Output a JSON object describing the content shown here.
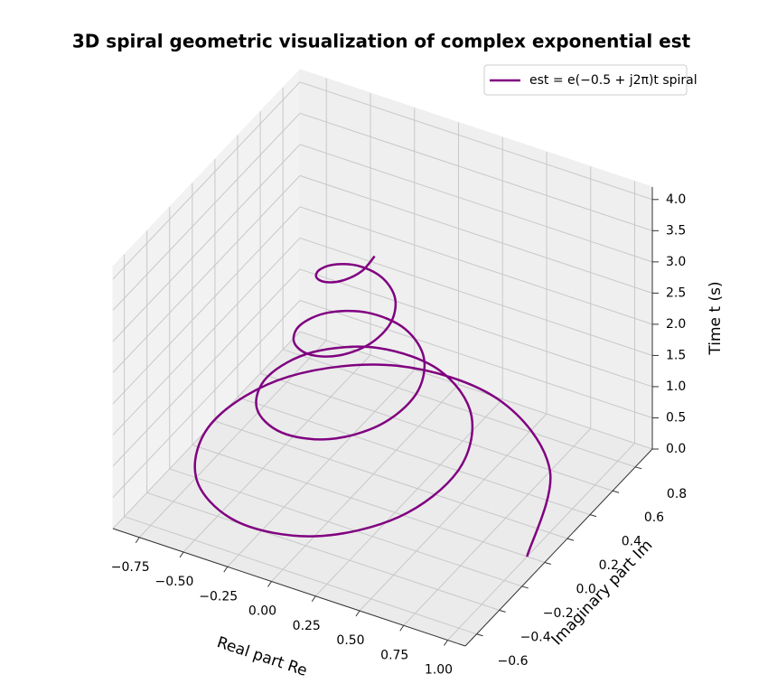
{
  "chart_data": {
    "type": "line3d",
    "title": "3D spiral geometric visualization of complex exponential est",
    "xlabel": "Real part Re",
    "ylabel": "Imaginary part Im",
    "zlabel": "Time t (s)",
    "xlim": [
      -0.9,
      1.1
    ],
    "ylim": [
      -0.7,
      0.95
    ],
    "zlim": [
      0,
      4.2
    ],
    "xticks": [
      {
        "value": -0.75,
        "label": "−0.75"
      },
      {
        "value": -0.5,
        "label": "−0.50"
      },
      {
        "value": -0.25,
        "label": "−0.25"
      },
      {
        "value": 0,
        "label": "0.00"
      },
      0.25,
      {
        "value": 0.5,
        "label": "0.50"
      },
      0.75,
      {
        "value": 1,
        "label": "1.00"
      }
    ],
    "yticks": [
      {
        "value": -0.6,
        "label": "−0.6"
      },
      {
        "value": -0.4,
        "label": "−0.4"
      },
      {
        "value": -0.2,
        "label": "−0.2"
      },
      {
        "value": 0,
        "label": "0.0"
      },
      0.2,
      0.4,
      0.6,
      0.8
    ],
    "zticks": [
      {
        "value": 0,
        "label": "0.0"
      },
      0.5,
      {
        "value": 1,
        "label": "1.0"
      },
      1.5,
      {
        "value": 2,
        "label": "2.0"
      },
      2.5,
      {
        "value": 3,
        "label": "3.0"
      },
      3.5,
      {
        "value": 4,
        "label": "4.0"
      }
    ],
    "grid": true,
    "legend": "upper right",
    "series": [
      {
        "name": "est = e(−0.5 + j2π)t spiral",
        "color": "#800080",
        "x": [
          1,
          0.77,
          0.28,
          -0.266,
          -0.662,
          -0.779,
          -0.599,
          -0.218,
          0.207,
          0.516,
          0.607,
          0.467,
          0.17,
          -0.161,
          -0.402,
          -0.472,
          -0.364,
          -0.132,
          0.126,
          0.313,
          0.368,
          0.283,
          0.103,
          -0.098,
          -0.244,
          -0.287,
          -0.22,
          -0.08,
          0.076,
          0.19,
          0.223,
          0.172,
          0.062,
          -0.059,
          -0.148,
          -0.174,
          -0.134,
          -0.049,
          0.046,
          0.115,
          0.135
        ],
        "y": [
          0,
          0.559,
          0.861,
          0.819,
          0.481,
          0,
          -0.435,
          -0.67,
          -0.638,
          -0.375,
          0,
          0.339,
          0.522,
          0.496,
          0.292,
          0,
          -0.264,
          -0.406,
          -0.387,
          -0.227,
          0,
          0.206,
          0.317,
          0.301,
          0.177,
          0,
          -0.16,
          -0.247,
          -0.235,
          -0.138,
          0,
          0.125,
          0.192,
          0.183,
          0.107,
          0,
          -0.097,
          -0.15,
          -0.142,
          -0.084,
          0
        ],
        "z": [
          0,
          0.1,
          0.2,
          0.3,
          0.4,
          0.5,
          0.6,
          0.7,
          0.8,
          0.9,
          1.0,
          1.1,
          1.2,
          1.3,
          1.4,
          1.5,
          1.6,
          1.7,
          1.8,
          1.9,
          2.0,
          2.1,
          2.2,
          2.3,
          2.4,
          2.5,
          2.6,
          2.7,
          2.8,
          2.9,
          3.0,
          3.1,
          3.2,
          3.3,
          3.4,
          3.5,
          3.6,
          3.7,
          3.8,
          3.9,
          4.0
        ]
      }
    ]
  }
}
